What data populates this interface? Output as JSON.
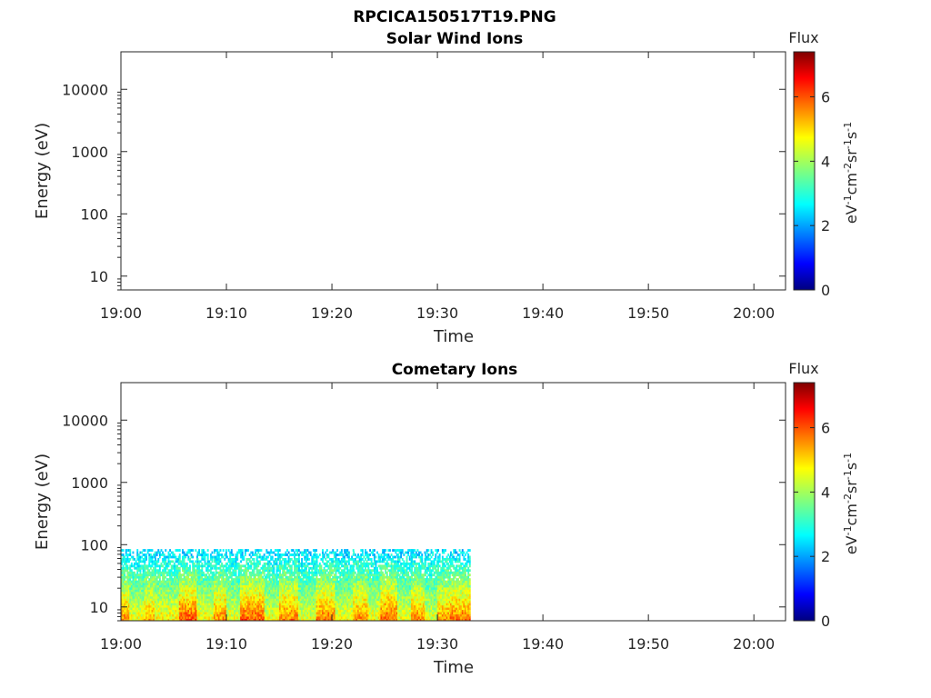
{
  "figure_title": "RPCICA150517T19.PNG",
  "colorbar": {
    "title": "Flux",
    "label": "eV-1cm-2sr-1s-1",
    "ticks": [
      "0",
      "2",
      "4",
      "6"
    ],
    "range": [
      0,
      7.4
    ]
  },
  "chart_data": [
    {
      "type": "heatmap",
      "title": "Solar Wind Ions",
      "xlabel": "Time",
      "ylabel": "Energy (eV)",
      "x_ticks": [
        "19:00",
        "19:10",
        "19:20",
        "19:30",
        "19:40",
        "19:50",
        "20:00"
      ],
      "y_ticks": [
        "10",
        "100",
        "1000",
        "10000"
      ],
      "y_scale": "log",
      "xlim": [
        "19:00",
        "20:03"
      ],
      "ylim": [
        6,
        40000
      ],
      "segments": []
    },
    {
      "type": "heatmap",
      "title": "Cometary Ions",
      "xlabel": "Time",
      "ylabel": "Energy (eV)",
      "x_ticks": [
        "19:00",
        "19:10",
        "19:20",
        "19:30",
        "19:40",
        "19:50",
        "20:00"
      ],
      "y_ticks": [
        "10",
        "100",
        "1000",
        "10000"
      ],
      "y_scale": "log",
      "xlim": [
        "19:00",
        "20:03"
      ],
      "ylim": [
        6,
        40000
      ],
      "data_extent": {
        "x": [
          "19:00",
          "19:33"
        ],
        "y": [
          6,
          85
        ]
      },
      "segments": [
        {
          "start": "19:00.0",
          "end": "19:00.8",
          "peak": 5.6
        },
        {
          "start": "19:00.8",
          "end": "19:02.2",
          "peak": 4.6
        },
        {
          "start": "19:02.2",
          "end": "19:03.2",
          "peak": 5.4
        },
        {
          "start": "19:03.2",
          "end": "19:05.5",
          "peak": 4.8
        },
        {
          "start": "19:05.5",
          "end": "19:07.2",
          "peak": 6.0
        },
        {
          "start": "19:07.2",
          "end": "19:08.8",
          "peak": 4.7
        },
        {
          "start": "19:08.8",
          "end": "19:10.0",
          "peak": 5.6
        },
        {
          "start": "19:10.0",
          "end": "19:11.3",
          "peak": 4.6
        },
        {
          "start": "19:11.3",
          "end": "19:13.6",
          "peak": 6.0
        },
        {
          "start": "19:13.6",
          "end": "19:15.0",
          "peak": 4.6
        },
        {
          "start": "19:15.0",
          "end": "19:16.8",
          "peak": 5.7
        },
        {
          "start": "19:16.8",
          "end": "19:18.5",
          "peak": 4.5
        },
        {
          "start": "19:18.5",
          "end": "19:20.3",
          "peak": 5.8
        },
        {
          "start": "19:20.3",
          "end": "19:22.0",
          "peak": 4.6
        },
        {
          "start": "19:22.0",
          "end": "19:23.4",
          "peak": 5.6
        },
        {
          "start": "19:23.4",
          "end": "19:24.6",
          "peak": 4.7
        },
        {
          "start": "19:24.6",
          "end": "19:26.2",
          "peak": 5.9
        },
        {
          "start": "19:26.2",
          "end": "19:27.5",
          "peak": 4.6
        },
        {
          "start": "19:27.5",
          "end": "19:28.8",
          "peak": 5.6
        },
        {
          "start": "19:28.8",
          "end": "19:30.0",
          "peak": 4.5
        },
        {
          "start": "19:30.0",
          "end": "19:31.2",
          "peak": 5.5
        },
        {
          "start": "19:31.2",
          "end": "19:33.0",
          "peak": 5.8
        }
      ]
    }
  ]
}
